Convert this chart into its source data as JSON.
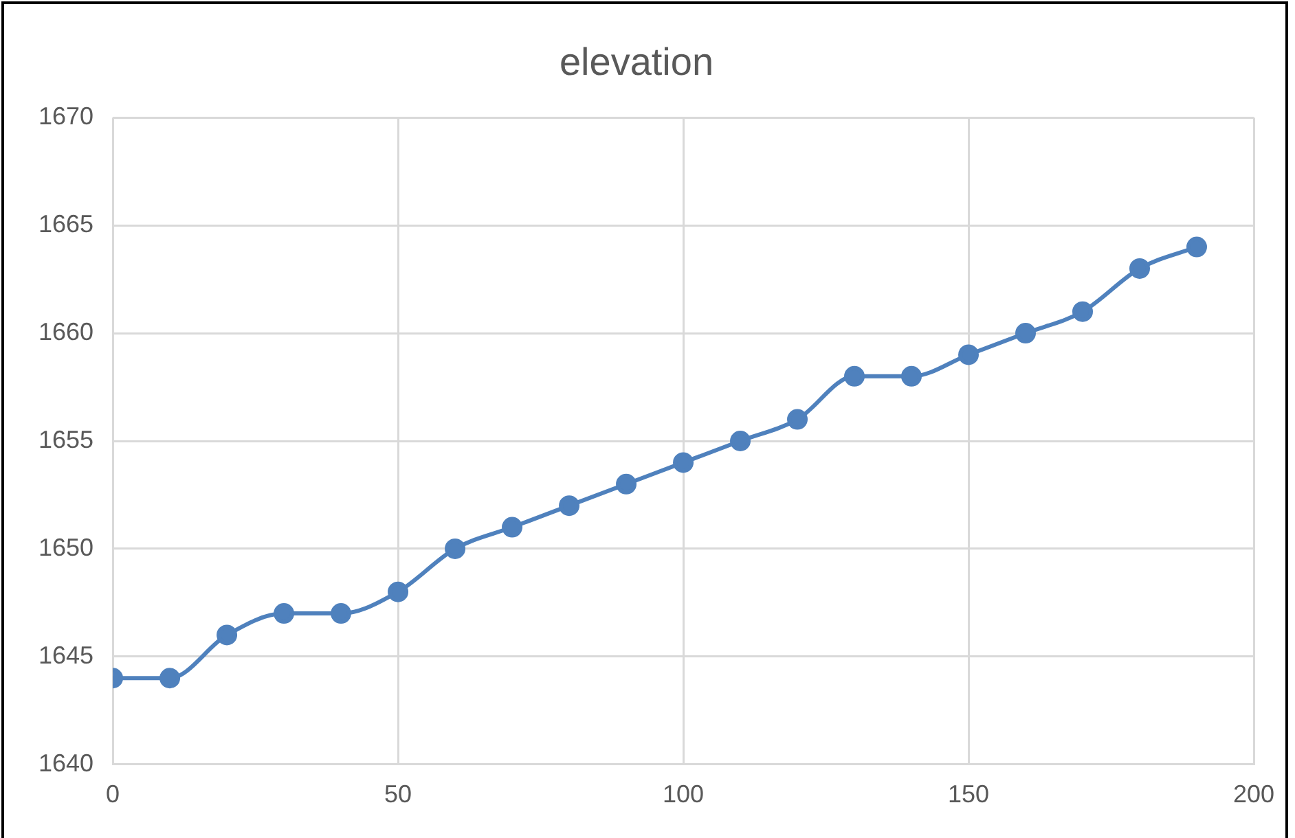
{
  "chart_data": {
    "type": "line",
    "title": "elevation",
    "x": [
      0,
      10,
      20,
      30,
      40,
      50,
      60,
      70,
      80,
      90,
      100,
      110,
      120,
      130,
      140,
      150,
      160,
      170,
      180,
      190
    ],
    "series": [
      {
        "color": "#4f81bd",
        "values": [
          1644,
          1644,
          1646,
          1647,
          1647,
          1648,
          1650,
          1651,
          1652,
          1653,
          1654,
          1655,
          1656,
          1658,
          1658,
          1659,
          1660,
          1661,
          1663,
          1664
        ]
      }
    ],
    "xlim": [
      0,
      200
    ],
    "xticks": [
      0,
      50,
      100,
      150,
      200
    ],
    "ylim": [
      1640,
      1670
    ],
    "yticks": [
      1640,
      1645,
      1650,
      1655,
      1660,
      1665,
      1670
    ],
    "grid": true,
    "legend": false,
    "marker": "circle",
    "line_style": "solid"
  }
}
